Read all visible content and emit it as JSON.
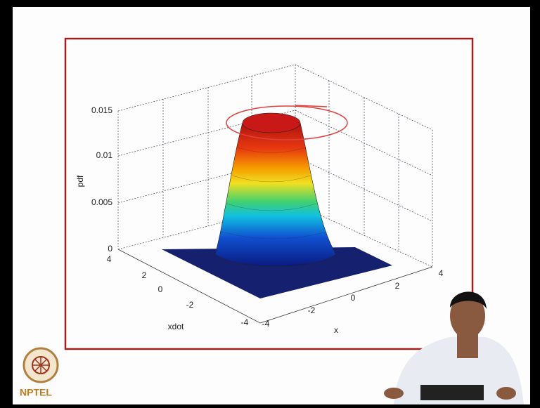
{
  "plot": {
    "zlabel": "pdf",
    "xlabel": "x",
    "ylabel": "xdot",
    "zticks": [
      0.015,
      0.01,
      0.005,
      0
    ],
    "yticks": [
      4,
      2,
      0,
      -2,
      -4
    ],
    "xticks": [
      -4,
      -2,
      0,
      2,
      4
    ]
  },
  "logo": {
    "text": "NPTEL"
  }
}
